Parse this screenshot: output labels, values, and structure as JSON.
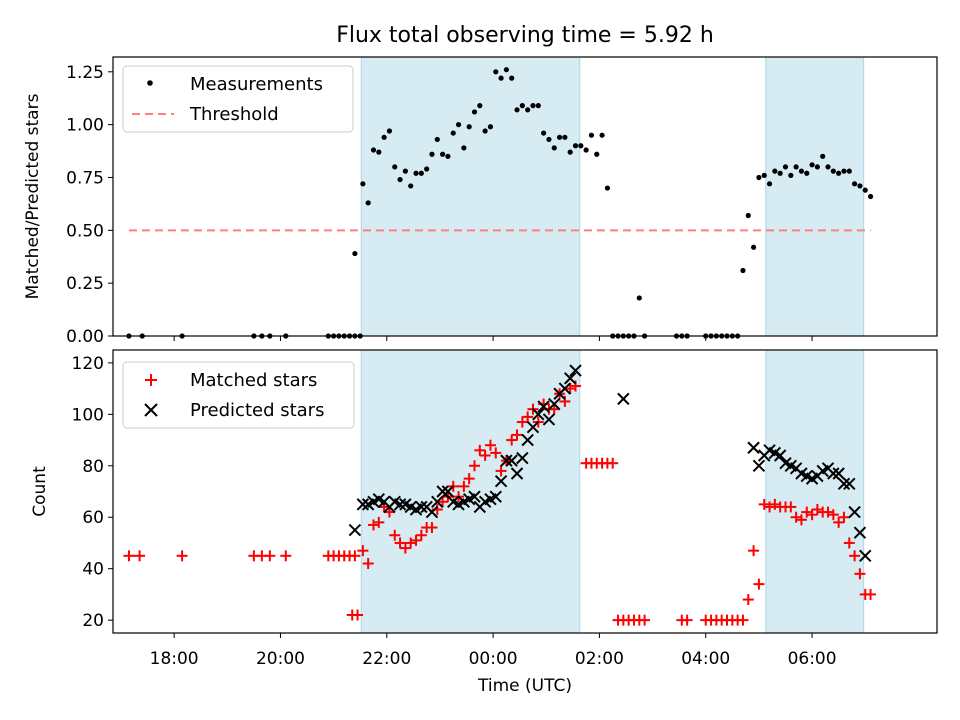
{
  "chart_data": [
    {
      "type": "scatter",
      "title": "Flux total observing time = 5.92 h",
      "ylabel": "Matched/Predicted stars",
      "xlabel": "",
      "xlim": [
        -7.15,
        8.35
      ],
      "ylim": [
        0,
        1.32
      ],
      "yticks": [
        0.0,
        0.25,
        0.5,
        0.75,
        1.0,
        1.25
      ],
      "ytick_labels": [
        "0.00",
        "0.25",
        "0.50",
        "0.75",
        "1.00",
        "1.25"
      ],
      "legend_position": "top-left",
      "observing_windows": [
        [
          -2.48,
          1.63
        ],
        [
          5.13,
          6.97
        ]
      ],
      "threshold": {
        "name": "Threshold",
        "y": 0.5,
        "x_range": [
          -6.85,
          7.1
        ],
        "color": "#ff7f7f"
      },
      "series": [
        {
          "name": "Measurements",
          "color": "#000000",
          "x": [
            -6.85,
            -6.6,
            -5.85,
            -4.5,
            -4.35,
            -4.2,
            -3.9,
            -3.1,
            -3.0,
            -2.9,
            -2.8,
            -2.7,
            -2.6,
            -2.5,
            -2.6,
            -2.45,
            -2.35,
            -2.25,
            -2.15,
            -2.05,
            -1.95,
            -1.85,
            -1.75,
            -1.65,
            -1.55,
            -1.45,
            -1.35,
            -1.25,
            -1.15,
            -1.05,
            -0.95,
            -0.85,
            -0.75,
            -0.65,
            -0.55,
            -0.45,
            -0.35,
            -0.25,
            -0.15,
            -0.05,
            0.05,
            0.15,
            0.25,
            0.35,
            0.45,
            0.55,
            0.65,
            0.75,
            0.85,
            0.95,
            1.05,
            1.15,
            1.25,
            1.35,
            1.45,
            1.55,
            1.65,
            1.75,
            1.85,
            1.95,
            2.05,
            2.15,
            2.25,
            2.35,
            2.45,
            2.55,
            2.65,
            2.75,
            2.85,
            3.45,
            3.55,
            3.65,
            4.0,
            4.1,
            4.2,
            4.3,
            4.4,
            4.5,
            4.6,
            4.7,
            4.8,
            4.9,
            5.0,
            5.1,
            5.2,
            5.3,
            5.4,
            5.5,
            5.6,
            5.7,
            5.8,
            5.9,
            6.0,
            6.1,
            6.2,
            6.3,
            6.4,
            6.5,
            6.6,
            6.7,
            6.8,
            6.9,
            7.0,
            7.1
          ],
          "y": [
            0,
            0,
            0,
            0,
            0,
            0,
            0,
            0,
            0,
            0,
            0,
            0,
            0,
            0,
            0.39,
            0.72,
            0.63,
            0.88,
            0.87,
            0.94,
            0.97,
            0.8,
            0.74,
            0.78,
            0.71,
            0.77,
            0.77,
            0.79,
            0.86,
            0.93,
            0.86,
            0.85,
            0.96,
            1.0,
            0.89,
            0.99,
            1.06,
            1.09,
            0.97,
            0.99,
            1.25,
            1.22,
            1.26,
            1.22,
            1.07,
            1.09,
            1.07,
            1.09,
            1.09,
            0.96,
            0.93,
            0.89,
            0.94,
            0.94,
            0.87,
            0.9,
            0.9,
            0.88,
            0.95,
            0.86,
            0.95,
            0.7,
            0,
            0,
            0,
            0,
            0,
            0.18,
            0,
            0,
            0,
            0,
            0,
            0,
            0,
            0,
            0,
            0,
            0,
            0.31,
            0.57,
            0.42,
            0.75,
            0.76,
            0.72,
            0.78,
            0.77,
            0.8,
            0.76,
            0.8,
            0.78,
            0.77,
            0.81,
            0.8,
            0.85,
            0.8,
            0.78,
            0.77,
            0.78,
            0.78,
            0.72,
            0.71,
            0.69,
            0.66
          ]
        }
      ]
    },
    {
      "type": "scatter",
      "title": "",
      "ylabel": "Count",
      "xlabel": "Time (UTC)",
      "xlim": [
        -7.15,
        8.35
      ],
      "ylim": [
        15,
        125
      ],
      "yticks": [
        20,
        40,
        60,
        80,
        100,
        120
      ],
      "ytick_labels": [
        "20",
        "40",
        "60",
        "80",
        "100",
        "120"
      ],
      "xticks": [
        -6,
        -4,
        -2,
        0,
        2,
        4,
        6
      ],
      "xtick_labels": [
        "18:00",
        "20:00",
        "22:00",
        "00:00",
        "02:00",
        "04:00",
        "06:00"
      ],
      "legend_position": "top-left",
      "observing_windows": [
        [
          -2.48,
          1.63
        ],
        [
          5.13,
          6.97
        ]
      ],
      "series": [
        {
          "name": "Matched stars",
          "color": "#ff0000",
          "marker": "+",
          "x": [
            -6.85,
            -6.65,
            -5.85,
            -4.5,
            -4.35,
            -4.2,
            -3.9,
            -3.1,
            -3.0,
            -2.9,
            -2.8,
            -2.7,
            -2.6,
            -2.65,
            -2.55,
            -2.45,
            -2.35,
            -2.25,
            -2.15,
            -2.05,
            -1.95,
            -1.85,
            -1.75,
            -1.65,
            -1.55,
            -1.45,
            -1.35,
            -1.25,
            -1.15,
            -1.05,
            -0.95,
            -0.85,
            -0.75,
            -0.65,
            -0.55,
            -0.45,
            -0.35,
            -0.25,
            -0.15,
            -0.05,
            0.05,
            0.15,
            0.25,
            0.35,
            0.45,
            0.55,
            0.65,
            0.75,
            0.85,
            0.95,
            1.05,
            1.15,
            1.25,
            1.35,
            1.45,
            1.55,
            1.75,
            1.85,
            1.95,
            2.05,
            2.15,
            2.25,
            2.35,
            2.45,
            2.55,
            2.65,
            2.75,
            2.85,
            3.55,
            3.65,
            4.0,
            4.1,
            4.2,
            4.3,
            4.4,
            4.5,
            4.6,
            4.7,
            4.8,
            4.9,
            5.0,
            5.1,
            5.2,
            5.3,
            5.4,
            5.5,
            5.6,
            5.7,
            5.8,
            5.9,
            6.0,
            6.1,
            6.2,
            6.3,
            6.4,
            6.5,
            6.6,
            6.7,
            6.8,
            6.9,
            7.0,
            7.1
          ],
          "y": [
            45,
            45,
            45,
            45,
            45,
            45,
            45,
            45,
            45,
            45,
            45,
            45,
            45,
            22,
            22,
            47,
            42,
            57,
            58,
            64,
            62,
            53,
            50,
            48,
            50,
            51,
            53,
            56,
            56,
            63,
            66,
            68,
            72,
            68,
            72,
            75,
            80,
            86,
            84,
            88,
            85,
            78,
            82,
            90,
            92,
            97,
            99,
            102,
            97,
            104,
            102,
            102,
            108,
            105,
            110,
            111,
            81,
            81,
            81,
            81,
            81,
            81,
            20,
            20,
            20,
            20,
            20,
            20,
            20,
            20,
            20,
            20,
            20,
            20,
            20,
            20,
            20,
            20,
            28,
            47,
            34,
            65,
            64,
            65,
            64,
            64,
            64,
            60,
            59,
            62,
            61,
            63,
            62,
            62,
            61,
            58,
            60,
            50,
            45,
            38,
            30,
            30
          ]
        },
        {
          "name": "Predicted stars",
          "color": "#000000",
          "marker": "x",
          "x": [
            -2.6,
            -2.45,
            -2.35,
            -2.25,
            -2.15,
            -2.05,
            -1.95,
            -1.85,
            -1.75,
            -1.65,
            -1.55,
            -1.45,
            -1.35,
            -1.25,
            -1.15,
            -1.05,
            -0.95,
            -0.85,
            -0.75,
            -0.65,
            -0.55,
            -0.45,
            -0.35,
            -0.25,
            -0.15,
            -0.05,
            0.05,
            0.15,
            0.25,
            0.35,
            0.45,
            0.55,
            0.65,
            0.75,
            0.85,
            0.95,
            1.05,
            1.15,
            1.25,
            1.35,
            1.45,
            1.55,
            2.45,
            4.9,
            5.0,
            5.1,
            5.2,
            5.3,
            5.4,
            5.5,
            5.6,
            5.7,
            5.8,
            5.9,
            6.0,
            6.1,
            6.2,
            6.3,
            6.4,
            6.5,
            6.6,
            6.7,
            6.8,
            6.9,
            7.0
          ],
          "y": [
            55,
            65,
            65,
            66,
            67,
            66,
            64,
            66,
            65,
            65,
            64,
            63,
            64,
            64,
            62,
            66,
            70,
            70,
            66,
            65,
            66,
            67,
            68,
            64,
            66,
            67,
            68,
            74,
            82,
            82,
            77,
            83,
            90,
            95,
            100,
            103,
            98,
            104,
            108,
            110,
            114,
            117,
            106,
            87,
            80,
            84,
            86,
            85,
            84,
            81,
            80,
            79,
            77,
            76,
            75,
            76,
            78,
            79,
            77,
            77,
            73,
            73,
            62,
            54,
            45
          ]
        }
      ]
    }
  ],
  "legend": [
    {
      "items": [
        {
          "label": "Measurements"
        },
        {
          "label": "Threshold"
        }
      ]
    },
    {
      "items": [
        {
          "label": "Matched stars"
        },
        {
          "label": "Predicted stars"
        }
      ]
    }
  ]
}
